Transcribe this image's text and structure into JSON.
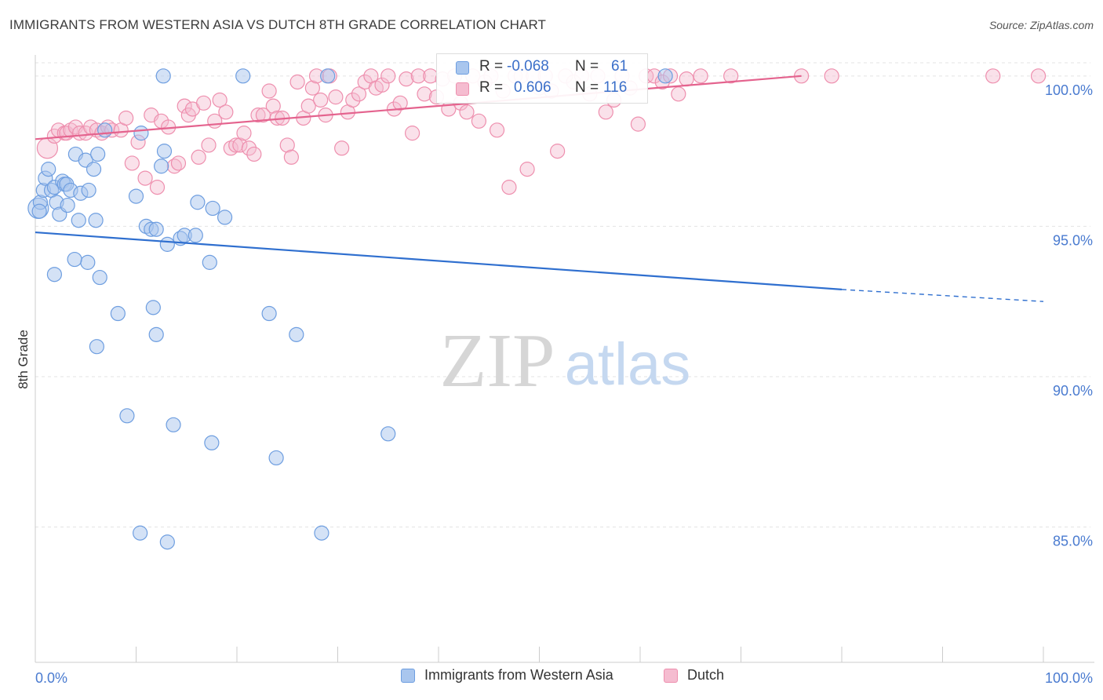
{
  "title": "IMMIGRANTS FROM WESTERN ASIA VS DUTCH 8TH GRADE CORRELATION CHART",
  "source": "Source: ZipAtlas.com",
  "watermark": {
    "zip": "ZIP",
    "atlas": "atlas"
  },
  "legend": {
    "series1": "Immigrants from Western Asia",
    "series2": "Dutch"
  },
  "stats": {
    "r_label": "R =",
    "n_label": "N =",
    "series1": {
      "r": "-0.068",
      "n": "61"
    },
    "series2": {
      "r": "0.606",
      "n": "116"
    }
  },
  "colors": {
    "series1_fill": "#a9c6ee",
    "series1_stroke": "#6e9ee0",
    "series1_line": "#2f6fcf",
    "series2_fill": "#f5bcd0",
    "series2_stroke": "#ee8fae",
    "series2_line": "#e4638e",
    "tick_label": "#4a7bd0"
  },
  "chart_data": {
    "type": "scatter",
    "title": "IMMIGRANTS FROM WESTERN ASIA VS DUTCH 8TH GRADE CORRELATION CHART",
    "xlabel": "",
    "ylabel": "8th Grade",
    "xlim": [
      0,
      100
    ],
    "ylim": [
      80.5,
      100.7
    ],
    "x_tick_labels": [
      "0.0%",
      "100.0%"
    ],
    "y_ticks": [
      100,
      95,
      90,
      85
    ],
    "y_tick_labels": [
      "100.0%",
      "95.0%",
      "90.0%",
      "85.0%"
    ],
    "grid": true,
    "legend_position": "bottom",
    "series": [
      {
        "name": "Immigrants from Western Asia",
        "trend": {
          "x_solid": [
            0,
            80
          ],
          "y_solid": [
            94.8,
            92.9
          ],
          "x_dashed": [
            80,
            100
          ],
          "y_dashed": [
            92.9,
            92.5
          ]
        },
        "points": [
          [
            0.3,
            95.6
          ],
          [
            0.5,
            95.8
          ],
          [
            0.8,
            96.2
          ],
          [
            1.0,
            96.6
          ],
          [
            1.3,
            96.9
          ],
          [
            1.6,
            96.2
          ],
          [
            1.9,
            96.3
          ],
          [
            2.1,
            95.8
          ],
          [
            2.4,
            95.4
          ],
          [
            2.7,
            96.5
          ],
          [
            2.9,
            96.4
          ],
          [
            3.1,
            96.4
          ],
          [
            3.2,
            95.7
          ],
          [
            3.5,
            96.2
          ],
          [
            4.0,
            97.4
          ],
          [
            4.3,
            95.2
          ],
          [
            4.5,
            96.1
          ],
          [
            5.0,
            97.2
          ],
          [
            5.3,
            96.2
          ],
          [
            5.8,
            96.9
          ],
          [
            6.0,
            95.2
          ],
          [
            6.2,
            97.4
          ],
          [
            6.9,
            98.2
          ],
          [
            10.0,
            96.0
          ],
          [
            10.5,
            98.1
          ],
          [
            11.0,
            95.0
          ],
          [
            11.5,
            94.9
          ],
          [
            12.0,
            94.9
          ],
          [
            12.5,
            97.0
          ],
          [
            12.8,
            97.5
          ],
          [
            13.1,
            94.4
          ],
          [
            14.4,
            94.6
          ],
          [
            14.8,
            94.7
          ],
          [
            15.9,
            94.7
          ],
          [
            16.1,
            95.8
          ],
          [
            17.3,
            93.8
          ],
          [
            17.6,
            95.6
          ],
          [
            18.8,
            95.3
          ],
          [
            1.9,
            93.4
          ],
          [
            5.2,
            93.8
          ],
          [
            6.4,
            93.3
          ],
          [
            8.2,
            92.1
          ],
          [
            11.7,
            92.3
          ],
          [
            12.0,
            91.4
          ],
          [
            6.1,
            91.0
          ],
          [
            23.2,
            92.1
          ],
          [
            25.9,
            91.4
          ],
          [
            9.1,
            88.7
          ],
          [
            13.7,
            88.4
          ],
          [
            17.5,
            87.8
          ],
          [
            23.9,
            87.3
          ],
          [
            35.0,
            88.1
          ],
          [
            10.4,
            84.8
          ],
          [
            13.1,
            84.5
          ],
          [
            28.4,
            84.8
          ],
          [
            12.7,
            100.0
          ],
          [
            20.6,
            100.0
          ],
          [
            29.0,
            100.0
          ],
          [
            62.5,
            100.0
          ],
          [
            0.4,
            95.5
          ],
          [
            3.9,
            93.9
          ]
        ]
      },
      {
        "name": "Dutch",
        "trend": {
          "x": [
            0,
            76
          ],
          "y": [
            97.9,
            100.0
          ]
        },
        "points": [
          [
            1.2,
            97.6
          ],
          [
            1.9,
            98.0
          ],
          [
            2.3,
            98.2
          ],
          [
            2.9,
            98.1
          ],
          [
            3.1,
            98.1
          ],
          [
            3.5,
            98.2
          ],
          [
            4.0,
            98.3
          ],
          [
            4.4,
            98.1
          ],
          [
            5.0,
            98.1
          ],
          [
            5.5,
            98.3
          ],
          [
            6.1,
            98.2
          ],
          [
            6.6,
            98.1
          ],
          [
            7.2,
            98.3
          ],
          [
            7.6,
            98.2
          ],
          [
            8.5,
            98.2
          ],
          [
            9.0,
            98.6
          ],
          [
            9.6,
            97.1
          ],
          [
            10.2,
            97.8
          ],
          [
            10.9,
            96.6
          ],
          [
            11.5,
            98.7
          ],
          [
            12.1,
            96.3
          ],
          [
            12.5,
            98.5
          ],
          [
            13.2,
            98.3
          ],
          [
            13.8,
            97.0
          ],
          [
            14.2,
            97.1
          ],
          [
            14.8,
            99.0
          ],
          [
            15.2,
            98.7
          ],
          [
            15.6,
            98.9
          ],
          [
            16.2,
            97.3
          ],
          [
            16.7,
            99.1
          ],
          [
            17.2,
            97.7
          ],
          [
            17.8,
            98.5
          ],
          [
            18.3,
            99.2
          ],
          [
            18.9,
            98.8
          ],
          [
            19.4,
            97.6
          ],
          [
            19.9,
            97.7
          ],
          [
            20.3,
            97.7
          ],
          [
            20.7,
            98.1
          ],
          [
            21.2,
            97.6
          ],
          [
            21.7,
            97.4
          ],
          [
            22.1,
            98.7
          ],
          [
            22.6,
            98.7
          ],
          [
            23.2,
            99.5
          ],
          [
            23.6,
            99.0
          ],
          [
            24.0,
            98.6
          ],
          [
            24.5,
            98.6
          ],
          [
            25.0,
            97.7
          ],
          [
            25.4,
            97.3
          ],
          [
            26.0,
            99.8
          ],
          [
            26.6,
            98.6
          ],
          [
            27.1,
            99.0
          ],
          [
            27.5,
            99.6
          ],
          [
            27.9,
            100.0
          ],
          [
            28.3,
            99.2
          ],
          [
            28.8,
            98.7
          ],
          [
            29.2,
            100.0
          ],
          [
            29.8,
            99.3
          ],
          [
            30.4,
            97.6
          ],
          [
            31.0,
            98.8
          ],
          [
            31.5,
            99.2
          ],
          [
            32.1,
            99.4
          ],
          [
            32.7,
            99.8
          ],
          [
            33.3,
            100.0
          ],
          [
            33.8,
            99.6
          ],
          [
            34.4,
            99.7
          ],
          [
            35.0,
            100.0
          ],
          [
            35.6,
            98.9
          ],
          [
            36.2,
            99.1
          ],
          [
            36.8,
            99.9
          ],
          [
            37.4,
            98.1
          ],
          [
            38.0,
            100.0
          ],
          [
            38.6,
            99.4
          ],
          [
            39.2,
            100.0
          ],
          [
            39.8,
            99.3
          ],
          [
            40.4,
            99.9
          ],
          [
            41.0,
            98.9
          ],
          [
            41.6,
            100.0
          ],
          [
            42.2,
            99.1
          ],
          [
            42.8,
            98.8
          ],
          [
            43.4,
            100.0
          ],
          [
            44.0,
            98.5
          ],
          [
            44.6,
            99.8
          ],
          [
            45.2,
            100.0
          ],
          [
            45.8,
            98.2
          ],
          [
            46.4,
            99.5
          ],
          [
            47.0,
            96.3
          ],
          [
            47.6,
            100.0
          ],
          [
            48.2,
            100.0
          ],
          [
            48.8,
            96.9
          ],
          [
            49.4,
            100.0
          ],
          [
            50.0,
            99.6
          ],
          [
            50.6,
            100.0
          ],
          [
            51.2,
            99.5
          ],
          [
            51.8,
            97.5
          ],
          [
            52.6,
            100.0
          ],
          [
            53.4,
            99.8
          ],
          [
            54.2,
            100.0
          ],
          [
            55.0,
            99.4
          ],
          [
            55.8,
            100.0
          ],
          [
            56.6,
            98.8
          ],
          [
            57.4,
            99.2
          ],
          [
            58.2,
            100.0
          ],
          [
            59.0,
            99.6
          ],
          [
            59.8,
            98.4
          ],
          [
            60.6,
            100.0
          ],
          [
            61.4,
            100.0
          ],
          [
            62.2,
            99.8
          ],
          [
            63.0,
            100.0
          ],
          [
            63.8,
            99.4
          ],
          [
            64.6,
            99.9
          ],
          [
            66.0,
            100.0
          ],
          [
            69.0,
            100.0
          ],
          [
            76.0,
            100.0
          ],
          [
            79.0,
            100.0
          ],
          [
            95.0,
            100.0
          ],
          [
            99.5,
            100.0
          ]
        ]
      }
    ]
  }
}
